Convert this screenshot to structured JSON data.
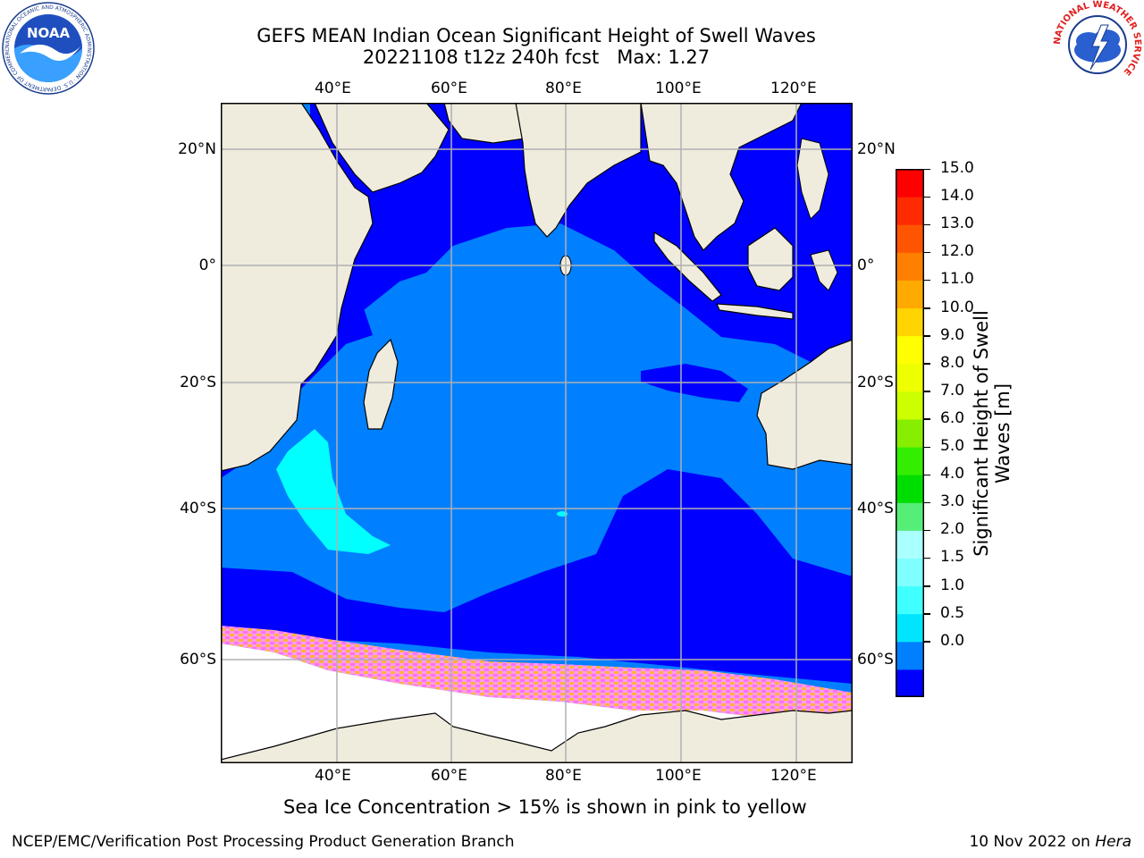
{
  "title": {
    "line1": "GEFS MEAN Indian Ocean Significant Height of Swell Waves",
    "line2": "20221108 t12z 240h fcst   Max: 1.27"
  },
  "map": {
    "lon_ticks": [
      "40°E",
      "60°E",
      "80°E",
      "100°E",
      "120°E"
    ],
    "lat_ticks": [
      "20°N",
      "0°",
      "20°S",
      "40°S",
      "60°S"
    ],
    "colors": {
      "land": "#efecde",
      "ice_free_white": "#ffffff",
      "level_0": "#0000ff",
      "level_1": "#0080ff",
      "level_2": "#00ffff",
      "ice_pink": "#ff60ff",
      "ice_orange": "#ffb040",
      "grid": "#b0b0b0"
    }
  },
  "colorbar": {
    "label_line1": "Significant Height of Swell",
    "label_line2": "Waves [m]",
    "ticks": [
      "15.0",
      "14.0",
      "13.0",
      "12.0",
      "11.0",
      "10.0",
      "9.0",
      "8.0",
      "7.0",
      "6.0",
      "5.0",
      "4.0",
      "3.0",
      "2.0",
      "1.5",
      "1.0",
      "0.5",
      "0.0"
    ],
    "colors_bottom_to_top": [
      "#0000ff",
      "#0080ff",
      "#00e5ff",
      "#40ffff",
      "#7fffff",
      "#aaffff",
      "#55ee77",
      "#00dd00",
      "#33ee00",
      "#88ee00",
      "#ccff00",
      "#eeff00",
      "#ffff00",
      "#ffd400",
      "#ffaa00",
      "#ff8000",
      "#ff5500",
      "#ff2a00",
      "#ff0000"
    ]
  },
  "caption": "Sea Ice Concentration > 15% is shown in pink to yellow",
  "footer": {
    "left": "NCEP/EMC/Verification Post Processing Product Generation Branch",
    "right_prefix": "10 Nov 2022 on ",
    "right_machine": "Hera"
  },
  "logos": {
    "noaa_text": "NOAA",
    "noaa_ring_text": "NATIONAL OCEANIC AND ATMOSPHERIC ADMINISTRATION · U.S. DEPARTMENT OF COMMERCE",
    "nws_ring_text": "NATIONAL WEATHER SERVICE"
  }
}
